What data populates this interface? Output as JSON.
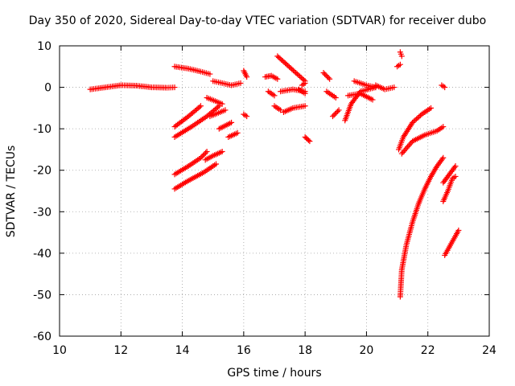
{
  "chart_data": {
    "type": "scatter",
    "title": "Day 350 of 2020, Sidereal Day-to-day VTEC variation (SDTVAR) for receiver dubo",
    "xlabel": "GPS time / hours",
    "ylabel": "SDTVAR / TECUs",
    "xlim": [
      10,
      24
    ],
    "ylim": [
      -60,
      10
    ],
    "xticks": [
      "10",
      "12",
      "14",
      "16",
      "18",
      "20",
      "22",
      "24"
    ],
    "yticks": [
      "10",
      "0",
      "-10",
      "-20",
      "-30",
      "-40",
      "-50",
      "-60"
    ],
    "grid": true,
    "marker": "+",
    "color": "#ff0000",
    "segments": [
      {
        "x": [
          11.0,
          11.5,
          12.0,
          12.5,
          13.0,
          13.5,
          13.75
        ],
        "y": [
          -0.5,
          0.0,
          0.5,
          0.4,
          0.0,
          -0.1,
          0.0
        ]
      },
      {
        "x": [
          13.75,
          14.2,
          14.6,
          14.9
        ],
        "y": [
          5.0,
          4.5,
          3.8,
          3.2
        ]
      },
      {
        "x": [
          13.75,
          14.2,
          14.6
        ],
        "y": [
          -9.5,
          -7.0,
          -4.5
        ]
      },
      {
        "x": [
          13.75,
          14.3,
          14.8,
          15.2
        ],
        "y": [
          -12.0,
          -9.5,
          -7.0,
          -4.5
        ]
      },
      {
        "x": [
          13.75,
          14.2,
          14.6,
          14.8
        ],
        "y": [
          -21.0,
          -19.0,
          -17.0,
          -15.5
        ]
      },
      {
        "x": [
          13.75,
          14.2,
          14.7,
          15.1
        ],
        "y": [
          -24.5,
          -22.5,
          -20.5,
          -18.5
        ]
      },
      {
        "x": [
          14.75,
          15.0,
          15.3
        ],
        "y": [
          -17.5,
          -16.5,
          -15.5
        ]
      },
      {
        "x": [
          14.8,
          15.3
        ],
        "y": [
          -2.5,
          -4.0
        ]
      },
      {
        "x": [
          14.9,
          15.4
        ],
        "y": [
          -7.0,
          -5.5
        ]
      },
      {
        "x": [
          15.2,
          15.6
        ],
        "y": [
          -10.0,
          -8.5
        ]
      },
      {
        "x": [
          15.5,
          15.8
        ],
        "y": [
          -12.0,
          -11.0
        ]
      },
      {
        "x": [
          15.0,
          15.3,
          15.6,
          15.9
        ],
        "y": [
          1.5,
          1.0,
          0.5,
          1.0
        ]
      },
      {
        "x": [
          16.0,
          16.1
        ],
        "y": [
          4.0,
          2.5
        ]
      },
      {
        "x": [
          16.0,
          16.1
        ],
        "y": [
          -6.5,
          -7.0
        ]
      },
      {
        "x": [
          16.7,
          16.9,
          17.1
        ],
        "y": [
          2.5,
          2.8,
          2.0
        ]
      },
      {
        "x": [
          16.8,
          17.0
        ],
        "y": [
          -1.0,
          -2.0
        ]
      },
      {
        "x": [
          17.0,
          17.2
        ],
        "y": [
          -4.5,
          -5.5
        ]
      },
      {
        "x": [
          17.1,
          17.4,
          17.7,
          18.0
        ],
        "y": [
          7.5,
          5.5,
          3.5,
          1.5
        ]
      },
      {
        "x": [
          17.2,
          17.6,
          18.0
        ],
        "y": [
          -1.0,
          -0.5,
          -1.0
        ]
      },
      {
        "x": [
          17.3,
          17.6,
          18.0
        ],
        "y": [
          -6.0,
          -5.0,
          -4.5
        ]
      },
      {
        "x": [
          17.8,
          18.0
        ],
        "y": [
          -0.5,
          -1.5
        ]
      },
      {
        "x": [
          17.9,
          18.0
        ],
        "y": [
          0.5,
          1.0
        ]
      },
      {
        "x": [
          18.0,
          18.15
        ],
        "y": [
          -12.0,
          -13.0
        ]
      },
      {
        "x": [
          18.6,
          18.8
        ],
        "y": [
          3.5,
          2.0
        ]
      },
      {
        "x": [
          18.7,
          19.0
        ],
        "y": [
          -1.0,
          -2.5
        ]
      },
      {
        "x": [
          18.9,
          19.1
        ],
        "y": [
          -7.0,
          -5.5
        ]
      },
      {
        "x": [
          19.3,
          19.5,
          19.8,
          20.3
        ],
        "y": [
          -8.0,
          -4.0,
          -1.0,
          0.0
        ]
      },
      {
        "x": [
          19.4,
          19.8,
          20.2
        ],
        "y": [
          -2.0,
          -1.5,
          -3.0
        ]
      },
      {
        "x": [
          19.6,
          20.0,
          20.3
        ],
        "y": [
          1.5,
          0.5,
          0.0
        ]
      },
      {
        "x": [
          20.3,
          20.6,
          20.9
        ],
        "y": [
          0.5,
          -0.5,
          0.0
        ]
      },
      {
        "x": [
          21.0,
          21.1
        ],
        "y": [
          5.0,
          5.5
        ]
      },
      {
        "x": [
          21.05,
          21.2,
          21.5,
          21.8,
          22.1
        ],
        "y": [
          -15.0,
          -12.0,
          -8.5,
          -6.5,
          -5.0
        ]
      },
      {
        "x": [
          21.15,
          21.5,
          21.9,
          22.3,
          22.5
        ],
        "y": [
          -16.0,
          -13.0,
          -11.5,
          -10.5,
          -9.5
        ]
      },
      {
        "x": [
          21.1,
          21.15,
          21.3,
          21.5,
          21.7,
          21.9,
          22.1,
          22.3,
          22.5
        ],
        "y": [
          -50.5,
          -44.0,
          -38.0,
          -32.5,
          -28.0,
          -24.5,
          -21.5,
          -19.0,
          -17.0
        ]
      },
      {
        "x": [
          21.1,
          21.15
        ],
        "y": [
          8.5,
          7.5
        ]
      },
      {
        "x": [
          22.45,
          22.55
        ],
        "y": [
          0.5,
          0.0
        ]
      },
      {
        "x": [
          22.5,
          22.7,
          22.9
        ],
        "y": [
          -23.0,
          -21.0,
          -19.0
        ]
      },
      {
        "x": [
          22.5,
          22.65,
          22.8,
          22.9
        ],
        "y": [
          -27.5,
          -25.0,
          -22.0,
          -21.5
        ]
      },
      {
        "x": [
          22.55,
          22.7,
          22.85,
          23.0
        ],
        "y": [
          -40.5,
          -38.5,
          -36.5,
          -34.5
        ]
      }
    ]
  }
}
